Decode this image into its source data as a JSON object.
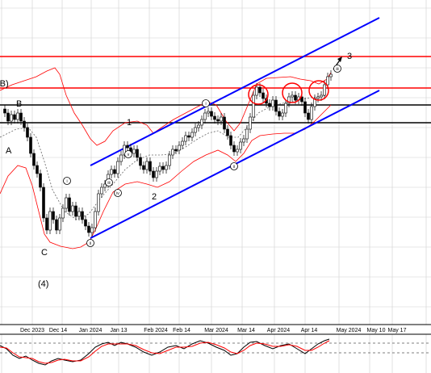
{
  "chart_data": {
    "type": "candlestick",
    "x_tick_labels": [
      "Dec 2023",
      "Dec 14",
      "Jan 2024",
      "Jan 13",
      "Feb 2024",
      "Feb 14",
      "Mar 2024",
      "Mar 14",
      "Apr 2024",
      "Apr 14",
      "May 2024",
      "May 10",
      "May 17"
    ],
    "wave_labels": [
      "(B)",
      "B",
      "A",
      "1",
      "2",
      "C",
      "(4)",
      "3"
    ],
    "sub_wave_labels": [
      "i",
      "ii",
      "iii",
      "iv",
      "v",
      "i",
      "ii",
      "iii"
    ],
    "horizontal_levels": [
      {
        "level": "upper",
        "color": "#ff0000"
      },
      {
        "level": "mid",
        "color": "#ff0000"
      },
      {
        "level": "support-1",
        "color": "#000000"
      },
      {
        "level": "support-2",
        "color": "#000000"
      }
    ],
    "channel_color": "#0000ff",
    "bollinger_color": "#ff0000",
    "oscillator": {
      "main_color": "#000000",
      "signal_color": "#ff0000"
    },
    "grid": true,
    "y_axis_labels": "none"
  }
}
